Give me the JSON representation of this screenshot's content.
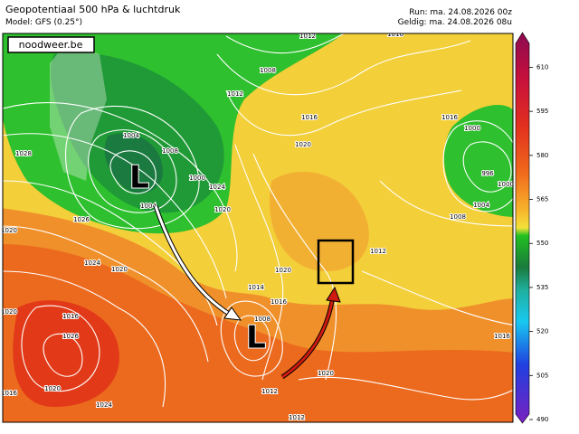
{
  "header": {
    "title": "Geopotentiaal 500 hPa & luchtdruk",
    "model": "Model: GFS (0.25°)",
    "run": "Run: ma. 24.08.2026 00z",
    "valid": "Geldig: ma. 24.08.2026 08u"
  },
  "brand": "noodweer.be",
  "lows": [
    "L",
    "L"
  ],
  "isobar_labels": [
    "1012",
    "1016",
    "1008",
    "1012",
    "1016",
    "1020",
    "1024",
    "1020",
    "1004",
    "1008",
    "1000",
    "1004",
    "1028",
    "1026",
    "1024",
    "1020",
    "1020",
    "1020",
    "1016",
    "1026",
    "1020",
    "1016",
    "1024",
    "1020",
    "1014",
    "1016",
    "1008",
    "1012",
    "1012",
    "1016",
    "996",
    "1000",
    "1004",
    "1008",
    "1016",
    "1012",
    "1000",
    "1020"
  ],
  "colorbar": {
    "lim": [
      490,
      620
    ],
    "ticks": [
      610,
      595,
      580,
      565,
      550,
      535,
      520,
      505,
      490
    ]
  }
}
